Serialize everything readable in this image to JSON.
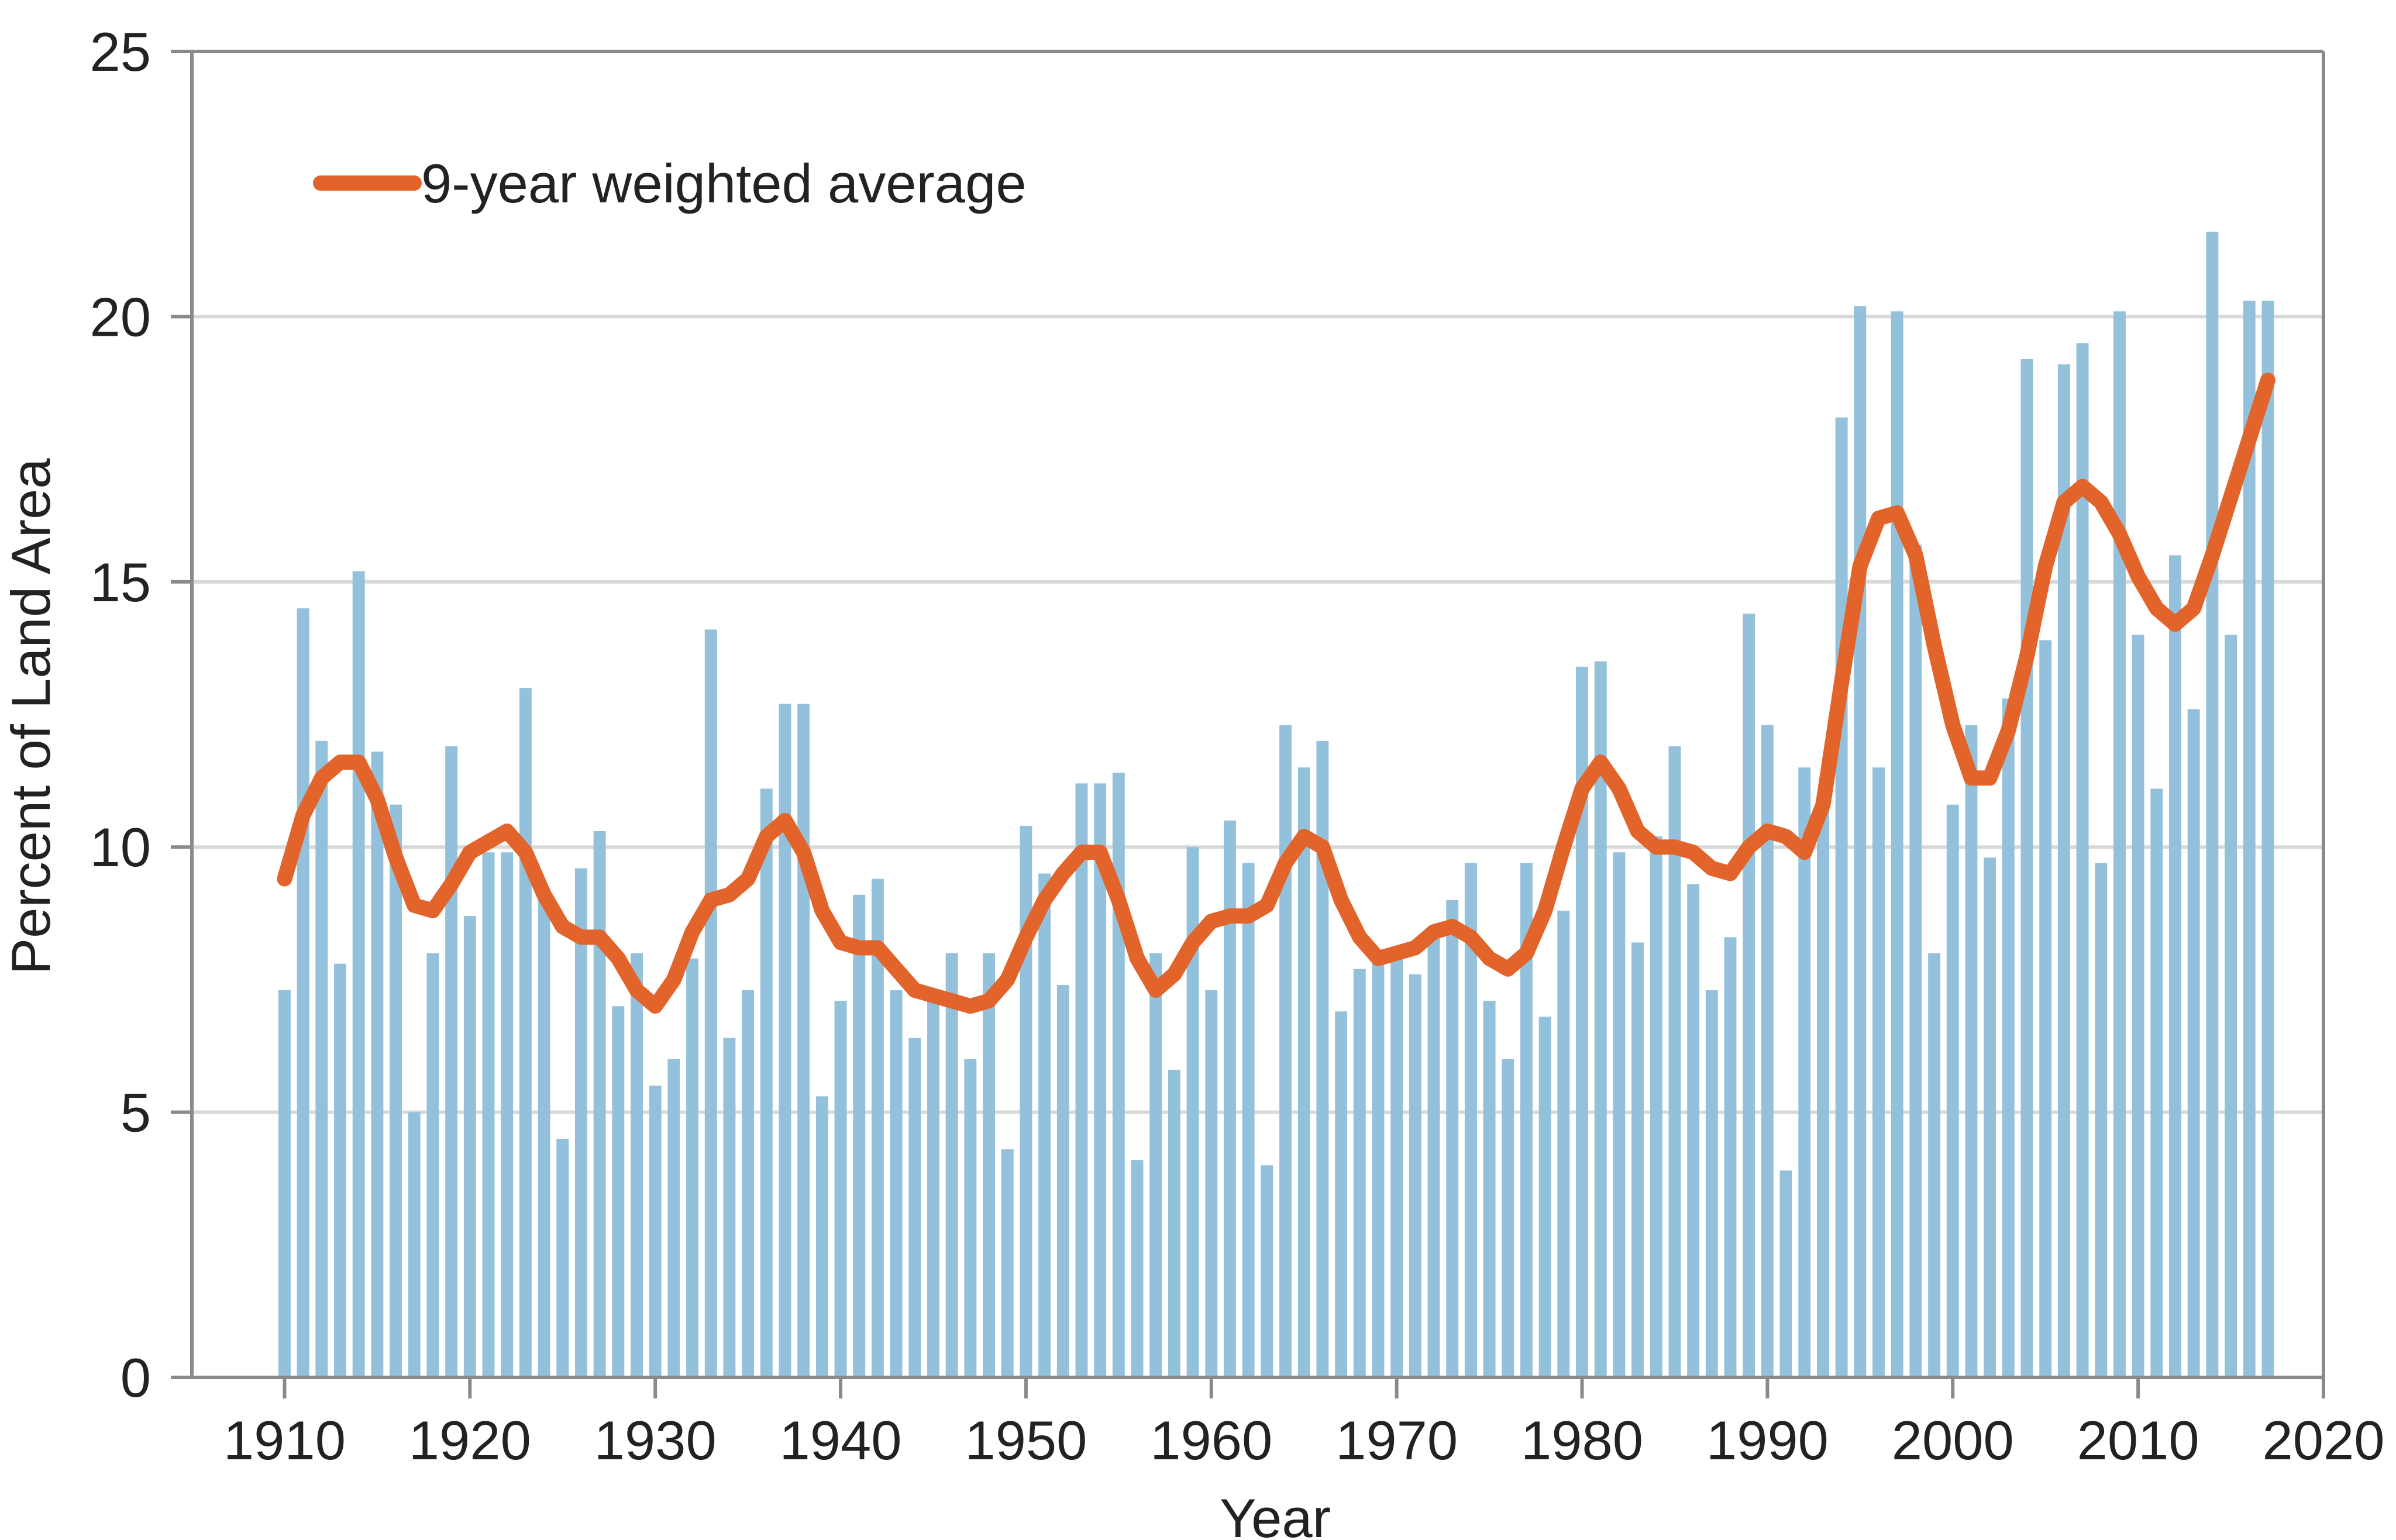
{
  "chart_data": {
    "type": "bar",
    "xlabel": "Year",
    "ylabel": "Percent of Land Area",
    "xlim": [
      1905,
      2020
    ],
    "ylim": [
      0,
      25
    ],
    "xticks": [
      1910,
      1920,
      1930,
      1940,
      1950,
      1960,
      1970,
      1980,
      1990,
      2000,
      2010,
      2020
    ],
    "yticks": [
      0,
      5,
      10,
      15,
      20,
      25
    ],
    "grid": "horizontal",
    "legend_position": "top-left",
    "colors": {
      "bars": "#93c1dc",
      "line": "#e2642a",
      "grid": "#d9d9d9",
      "axis": "#8a8a8a"
    },
    "x": [
      1910,
      1911,
      1912,
      1913,
      1914,
      1915,
      1916,
      1917,
      1918,
      1919,
      1920,
      1921,
      1922,
      1923,
      1924,
      1925,
      1926,
      1927,
      1928,
      1929,
      1930,
      1931,
      1932,
      1933,
      1934,
      1935,
      1936,
      1937,
      1938,
      1939,
      1940,
      1941,
      1942,
      1943,
      1944,
      1945,
      1946,
      1947,
      1948,
      1949,
      1950,
      1951,
      1952,
      1953,
      1954,
      1955,
      1956,
      1957,
      1958,
      1959,
      1960,
      1961,
      1962,
      1963,
      1964,
      1965,
      1966,
      1967,
      1968,
      1969,
      1970,
      1971,
      1972,
      1973,
      1974,
      1975,
      1976,
      1977,
      1978,
      1979,
      1980,
      1981,
      1982,
      1983,
      1984,
      1985,
      1986,
      1987,
      1988,
      1989,
      1990,
      1991,
      1992,
      1993,
      1994,
      1995,
      1996,
      1997,
      1998,
      1999,
      2000,
      2001,
      2002,
      2003,
      2004,
      2005,
      2006,
      2007,
      2008,
      2009,
      2010,
      2011,
      2012,
      2013,
      2014,
      2015,
      2016,
      2017
    ],
    "series": [
      {
        "type": "bar",
        "values": [
          7.3,
          14.5,
          12.0,
          7.8,
          15.2,
          11.8,
          10.8,
          5.0,
          8.0,
          11.9,
          8.7,
          9.9,
          9.9,
          13.0,
          9.2,
          4.5,
          9.6,
          10.3,
          7.0,
          8.0,
          5.5,
          6.0,
          7.9,
          14.1,
          6.4,
          7.3,
          11.1,
          12.7,
          12.7,
          5.3,
          7.1,
          9.1,
          9.4,
          7.3,
          6.4,
          7.2,
          8.0,
          6.0,
          8.0,
          4.3,
          10.4,
          9.5,
          7.4,
          11.2,
          11.2,
          11.4,
          4.1,
          8.0,
          5.8,
          10.0,
          7.3,
          10.5,
          9.7,
          4.0,
          12.3,
          11.5,
          12.0,
          6.9,
          7.7,
          7.9,
          8.0,
          7.6,
          8.4,
          9.0,
          9.7,
          7.1,
          6.0,
          9.7,
          6.8,
          8.8,
          13.4,
          13.5,
          9.9,
          8.2,
          10.2,
          11.9,
          9.3,
          7.3,
          8.3,
          14.4,
          12.3,
          3.9,
          11.5,
          10.9,
          18.1,
          20.2,
          11.5,
          20.1,
          15.7,
          8.0,
          10.8,
          12.3,
          9.8,
          12.8,
          19.2,
          13.9,
          19.1,
          19.5,
          9.7,
          20.1,
          14.0,
          11.1,
          15.5,
          12.6,
          21.6,
          14.0,
          20.3,
          20.3
        ]
      },
      {
        "type": "line",
        "name": "9-year weighted average",
        "values": [
          9.4,
          10.6,
          11.3,
          11.6,
          11.6,
          10.9,
          9.8,
          8.9,
          8.8,
          9.3,
          9.9,
          10.1,
          10.3,
          9.9,
          9.1,
          8.5,
          8.3,
          8.3,
          7.9,
          7.3,
          7.0,
          7.5,
          8.4,
          9.0,
          9.1,
          9.4,
          10.2,
          10.5,
          9.9,
          8.8,
          8.2,
          8.1,
          8.1,
          7.7,
          7.3,
          7.2,
          7.1,
          7.0,
          7.1,
          7.5,
          8.3,
          9.0,
          9.5,
          9.9,
          9.9,
          9.0,
          7.9,
          7.3,
          7.6,
          8.2,
          8.6,
          8.7,
          8.7,
          8.9,
          9.7,
          10.2,
          10.0,
          9.0,
          8.3,
          7.9,
          8.0,
          8.1,
          8.4,
          8.5,
          8.3,
          7.9,
          7.7,
          8.0,
          8.8,
          10.0,
          11.1,
          11.6,
          11.1,
          10.3,
          10.0,
          10.0,
          9.9,
          9.6,
          9.5,
          10.0,
          10.3,
          10.2,
          9.9,
          10.8,
          13.1,
          15.3,
          16.2,
          16.3,
          15.5,
          13.8,
          12.3,
          11.3,
          11.3,
          12.2,
          13.6,
          15.3,
          16.5,
          16.8,
          16.5,
          15.9,
          15.1,
          14.5,
          14.2,
          14.5,
          15.5,
          16.6,
          17.7,
          18.8
        ]
      }
    ]
  }
}
